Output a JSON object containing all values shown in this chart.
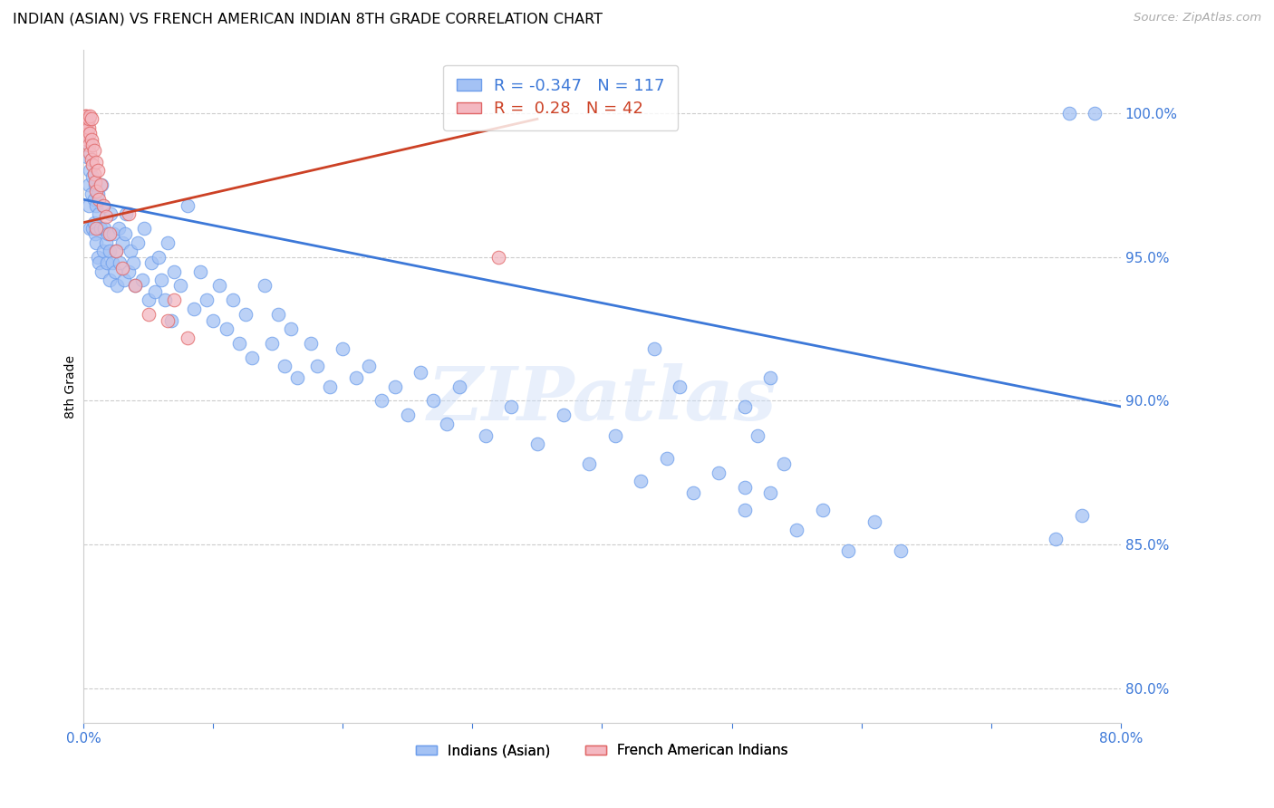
{
  "title": "INDIAN (ASIAN) VS FRENCH AMERICAN INDIAN 8TH GRADE CORRELATION CHART",
  "source": "Source: ZipAtlas.com",
  "ylabel": "8th Grade",
  "xlim": [
    0.0,
    0.8
  ],
  "ylim": [
    0.788,
    1.022
  ],
  "xticks": [
    0.0,
    0.1,
    0.2,
    0.3,
    0.4,
    0.5,
    0.6,
    0.7,
    0.8
  ],
  "xticklabels": [
    "0.0%",
    "",
    "",
    "",
    "",
    "",
    "",
    "",
    "80.0%"
  ],
  "yticks_right": [
    0.8,
    0.85,
    0.9,
    0.95,
    1.0
  ],
  "yticklabels_right": [
    "80.0%",
    "85.0%",
    "90.0%",
    "95.0%",
    "100.0%"
  ],
  "blue_R": -0.347,
  "blue_N": 117,
  "pink_R": 0.28,
  "pink_N": 42,
  "blue_label": "Indians (Asian)",
  "pink_label": "French American Indians",
  "blue_color": "#a4c2f4",
  "pink_color": "#f4b8c1",
  "blue_edge_color": "#6d9eeb",
  "pink_edge_color": "#e06666",
  "blue_line_color": "#3c78d8",
  "pink_line_color": "#cc4125",
  "watermark": "ZIPatlas",
  "blue_trend_x": [
    0.0,
    0.8
  ],
  "blue_trend_y": [
    0.97,
    0.898
  ],
  "pink_trend_x": [
    0.0,
    0.35
  ],
  "pink_trend_y": [
    0.962,
    0.998
  ],
  "blue_scatter_x": [
    0.002,
    0.003,
    0.004,
    0.004,
    0.005,
    0.005,
    0.006,
    0.007,
    0.007,
    0.008,
    0.008,
    0.009,
    0.009,
    0.01,
    0.01,
    0.011,
    0.011,
    0.012,
    0.012,
    0.013,
    0.014,
    0.014,
    0.015,
    0.015,
    0.016,
    0.017,
    0.018,
    0.019,
    0.02,
    0.02,
    0.021,
    0.022,
    0.023,
    0.024,
    0.025,
    0.026,
    0.027,
    0.028,
    0.03,
    0.031,
    0.032,
    0.033,
    0.035,
    0.036,
    0.038,
    0.04,
    0.042,
    0.045,
    0.047,
    0.05,
    0.052,
    0.055,
    0.058,
    0.06,
    0.063,
    0.065,
    0.068,
    0.07,
    0.075,
    0.08,
    0.085,
    0.09,
    0.095,
    0.1,
    0.105,
    0.11,
    0.115,
    0.12,
    0.125,
    0.13,
    0.14,
    0.145,
    0.15,
    0.155,
    0.16,
    0.165,
    0.175,
    0.18,
    0.19,
    0.2,
    0.21,
    0.22,
    0.23,
    0.24,
    0.25,
    0.26,
    0.27,
    0.28,
    0.29,
    0.31,
    0.33,
    0.35,
    0.37,
    0.39,
    0.41,
    0.43,
    0.45,
    0.47,
    0.49,
    0.51,
    0.53,
    0.55,
    0.57,
    0.59,
    0.61,
    0.63,
    0.53,
    0.51,
    0.76,
    0.78,
    0.75,
    0.77,
    0.44,
    0.46,
    0.51,
    0.52,
    0.54
  ],
  "blue_scatter_y": [
    0.99,
    0.985,
    0.975,
    0.968,
    0.98,
    0.96,
    0.972,
    0.978,
    0.96,
    0.97,
    0.962,
    0.975,
    0.958,
    0.968,
    0.955,
    0.972,
    0.95,
    0.965,
    0.948,
    0.96,
    0.975,
    0.945,
    0.968,
    0.952,
    0.96,
    0.955,
    0.948,
    0.958,
    0.952,
    0.942,
    0.965,
    0.948,
    0.958,
    0.945,
    0.952,
    0.94,
    0.96,
    0.948,
    0.955,
    0.942,
    0.958,
    0.965,
    0.945,
    0.952,
    0.948,
    0.94,
    0.955,
    0.942,
    0.96,
    0.935,
    0.948,
    0.938,
    0.95,
    0.942,
    0.935,
    0.955,
    0.928,
    0.945,
    0.94,
    0.968,
    0.932,
    0.945,
    0.935,
    0.928,
    0.94,
    0.925,
    0.935,
    0.92,
    0.93,
    0.915,
    0.94,
    0.92,
    0.93,
    0.912,
    0.925,
    0.908,
    0.92,
    0.912,
    0.905,
    0.918,
    0.908,
    0.912,
    0.9,
    0.905,
    0.895,
    0.91,
    0.9,
    0.892,
    0.905,
    0.888,
    0.898,
    0.885,
    0.895,
    0.878,
    0.888,
    0.872,
    0.88,
    0.868,
    0.875,
    0.862,
    0.868,
    0.855,
    0.862,
    0.848,
    0.858,
    0.848,
    0.908,
    0.87,
    1.0,
    1.0,
    0.852,
    0.86,
    0.918,
    0.905,
    0.898,
    0.888,
    0.878
  ],
  "pink_scatter_x": [
    0.001,
    0.001,
    0.001,
    0.002,
    0.002,
    0.002,
    0.002,
    0.003,
    0.003,
    0.003,
    0.004,
    0.004,
    0.004,
    0.005,
    0.005,
    0.005,
    0.006,
    0.006,
    0.006,
    0.007,
    0.007,
    0.008,
    0.008,
    0.009,
    0.01,
    0.01,
    0.011,
    0.012,
    0.013,
    0.015,
    0.017,
    0.02,
    0.025,
    0.03,
    0.035,
    0.04,
    0.05,
    0.065,
    0.08,
    0.01,
    0.32,
    0.07
  ],
  "pink_scatter_y": [
    0.998,
    0.997,
    0.999,
    0.996,
    0.998,
    0.995,
    0.999,
    0.993,
    0.997,
    0.991,
    0.995,
    0.989,
    0.998,
    0.986,
    0.993,
    0.999,
    0.984,
    0.991,
    0.998,
    0.982,
    0.989,
    0.979,
    0.987,
    0.976,
    0.983,
    0.973,
    0.98,
    0.97,
    0.975,
    0.968,
    0.964,
    0.958,
    0.952,
    0.946,
    0.965,
    0.94,
    0.93,
    0.928,
    0.922,
    0.96,
    0.95,
    0.935
  ]
}
